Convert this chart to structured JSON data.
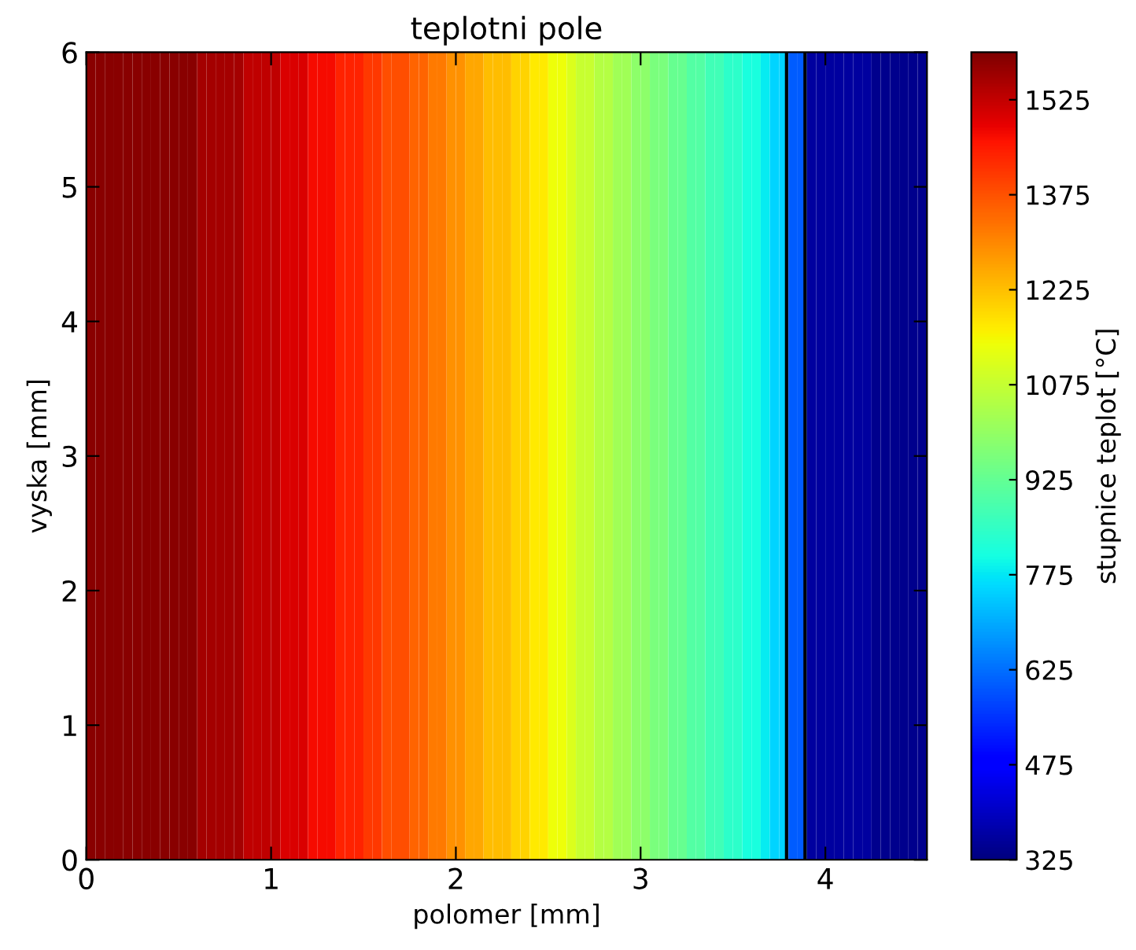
{
  "chart_data": {
    "type": "heatmap",
    "title": "teplotni pole",
    "xlabel": "polomer [mm]",
    "ylabel": "vyska [mm]",
    "clabel": "stupnice teplot [°C]",
    "x": [
      0.025,
      0.075,
      0.125,
      0.175,
      0.225,
      0.275,
      0.325,
      0.375,
      0.425,
      0.475,
      0.525,
      0.575,
      0.625,
      0.675,
      0.725,
      0.775,
      0.825,
      0.875,
      0.925,
      0.975,
      1.025,
      1.075,
      1.125,
      1.175,
      1.225,
      1.275,
      1.325,
      1.375,
      1.425,
      1.475,
      1.525,
      1.575,
      1.625,
      1.675,
      1.725,
      1.775,
      1.825,
      1.875,
      1.925,
      1.975,
      2.025,
      2.075,
      2.125,
      2.175,
      2.225,
      2.275,
      2.325,
      2.375,
      2.425,
      2.475,
      2.525,
      2.575,
      2.625,
      2.675,
      2.725,
      2.775,
      2.825,
      2.875,
      2.925,
      2.975,
      3.025,
      3.075,
      3.125,
      3.175,
      3.225,
      3.275,
      3.325,
      3.375,
      3.425,
      3.475,
      3.525,
      3.575,
      3.625,
      3.675,
      3.725,
      3.775,
      3.825,
      3.875,
      3.925,
      3.975,
      4.025,
      4.075,
      4.125,
      4.175,
      4.225,
      4.275,
      4.325,
      4.375,
      4.425,
      4.475,
      4.525
    ],
    "cells": [
      [
        1590,
        1590,
        1590,
        1590,
        1590,
        1590,
        1590,
        1590,
        1590,
        1590,
        1590,
        1590,
        1560,
        1560,
        1560,
        1560,
        1560,
        1530,
        1530,
        1530,
        1530,
        1500,
        1500,
        1500,
        1470,
        1470,
        1470,
        1440,
        1440,
        1440,
        1410,
        1410,
        1380,
        1380,
        1380,
        1350,
        1350,
        1320,
        1320,
        1290,
        1290,
        1260,
        1260,
        1230,
        1230,
        1230,
        1200,
        1200,
        1170,
        1170,
        1140,
        1140,
        1110,
        1080,
        1080,
        1050,
        1050,
        1020,
        1020,
        990,
        990,
        960,
        960,
        930,
        930,
        900,
        900,
        870,
        870,
        840,
        840,
        810,
        810,
        780,
        750,
        750,
        600,
        600,
        360,
        360,
        360,
        360,
        360,
        360,
        360,
        340,
        340,
        340,
        340,
        340,
        340
      ]
    ],
    "xlim": [
      0,
      4.55
    ],
    "xticks": [
      0,
      1,
      2,
      3,
      4
    ],
    "ylim": [
      0,
      6
    ],
    "yticks": [
      0,
      1,
      2,
      3,
      4,
      5,
      6
    ],
    "clim": [
      325,
      1600
    ],
    "cticks": [
      325,
      475,
      625,
      775,
      925,
      1075,
      1225,
      1375,
      1525
    ],
    "ref_lines": [
      {
        "axis": "x",
        "value": 3.79,
        "color": "#000000"
      },
      {
        "axis": "x",
        "value": 3.89,
        "color": "#000000"
      }
    ]
  }
}
